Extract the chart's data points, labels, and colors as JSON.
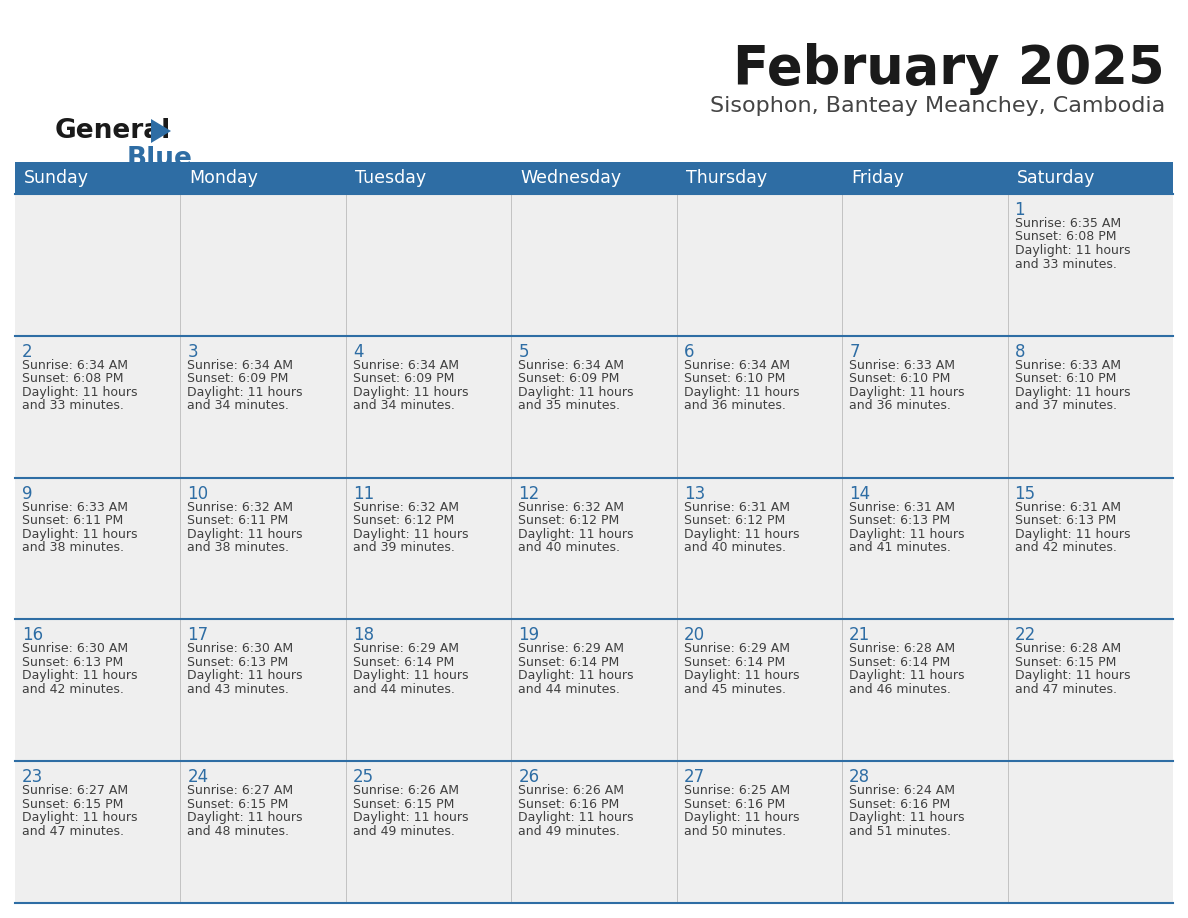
{
  "title": "February 2025",
  "subtitle": "Sisophon, Banteay Meanchey, Cambodia",
  "days_of_week": [
    "Sunday",
    "Monday",
    "Tuesday",
    "Wednesday",
    "Thursday",
    "Friday",
    "Saturday"
  ],
  "header_bg": "#2E6DA4",
  "header_text": "#FFFFFF",
  "cell_bg_light": "#EFEFEF",
  "day_number_color": "#2E6DA4",
  "text_color": "#404040",
  "line_color": "#2E6DA4",
  "grid_color": "#BBBBBB",
  "calendar_data": [
    [
      null,
      null,
      null,
      null,
      null,
      null,
      {
        "day": 1,
        "sunrise": "6:35 AM",
        "sunset": "6:08 PM",
        "daylight": "11 hours and 33 minutes."
      }
    ],
    [
      {
        "day": 2,
        "sunrise": "6:34 AM",
        "sunset": "6:08 PM",
        "daylight": "11 hours and 33 minutes."
      },
      {
        "day": 3,
        "sunrise": "6:34 AM",
        "sunset": "6:09 PM",
        "daylight": "11 hours and 34 minutes."
      },
      {
        "day": 4,
        "sunrise": "6:34 AM",
        "sunset": "6:09 PM",
        "daylight": "11 hours and 34 minutes."
      },
      {
        "day": 5,
        "sunrise": "6:34 AM",
        "sunset": "6:09 PM",
        "daylight": "11 hours and 35 minutes."
      },
      {
        "day": 6,
        "sunrise": "6:34 AM",
        "sunset": "6:10 PM",
        "daylight": "11 hours and 36 minutes."
      },
      {
        "day": 7,
        "sunrise": "6:33 AM",
        "sunset": "6:10 PM",
        "daylight": "11 hours and 36 minutes."
      },
      {
        "day": 8,
        "sunrise": "6:33 AM",
        "sunset": "6:10 PM",
        "daylight": "11 hours and 37 minutes."
      }
    ],
    [
      {
        "day": 9,
        "sunrise": "6:33 AM",
        "sunset": "6:11 PM",
        "daylight": "11 hours and 38 minutes."
      },
      {
        "day": 10,
        "sunrise": "6:32 AM",
        "sunset": "6:11 PM",
        "daylight": "11 hours and 38 minutes."
      },
      {
        "day": 11,
        "sunrise": "6:32 AM",
        "sunset": "6:12 PM",
        "daylight": "11 hours and 39 minutes."
      },
      {
        "day": 12,
        "sunrise": "6:32 AM",
        "sunset": "6:12 PM",
        "daylight": "11 hours and 40 minutes."
      },
      {
        "day": 13,
        "sunrise": "6:31 AM",
        "sunset": "6:12 PM",
        "daylight": "11 hours and 40 minutes."
      },
      {
        "day": 14,
        "sunrise": "6:31 AM",
        "sunset": "6:13 PM",
        "daylight": "11 hours and 41 minutes."
      },
      {
        "day": 15,
        "sunrise": "6:31 AM",
        "sunset": "6:13 PM",
        "daylight": "11 hours and 42 minutes."
      }
    ],
    [
      {
        "day": 16,
        "sunrise": "6:30 AM",
        "sunset": "6:13 PM",
        "daylight": "11 hours and 42 minutes."
      },
      {
        "day": 17,
        "sunrise": "6:30 AM",
        "sunset": "6:13 PM",
        "daylight": "11 hours and 43 minutes."
      },
      {
        "day": 18,
        "sunrise": "6:29 AM",
        "sunset": "6:14 PM",
        "daylight": "11 hours and 44 minutes."
      },
      {
        "day": 19,
        "sunrise": "6:29 AM",
        "sunset": "6:14 PM",
        "daylight": "11 hours and 44 minutes."
      },
      {
        "day": 20,
        "sunrise": "6:29 AM",
        "sunset": "6:14 PM",
        "daylight": "11 hours and 45 minutes."
      },
      {
        "day": 21,
        "sunrise": "6:28 AM",
        "sunset": "6:14 PM",
        "daylight": "11 hours and 46 minutes."
      },
      {
        "day": 22,
        "sunrise": "6:28 AM",
        "sunset": "6:15 PM",
        "daylight": "11 hours and 47 minutes."
      }
    ],
    [
      {
        "day": 23,
        "sunrise": "6:27 AM",
        "sunset": "6:15 PM",
        "daylight": "11 hours and 47 minutes."
      },
      {
        "day": 24,
        "sunrise": "6:27 AM",
        "sunset": "6:15 PM",
        "daylight": "11 hours and 48 minutes."
      },
      {
        "day": 25,
        "sunrise": "6:26 AM",
        "sunset": "6:15 PM",
        "daylight": "11 hours and 49 minutes."
      },
      {
        "day": 26,
        "sunrise": "6:26 AM",
        "sunset": "6:16 PM",
        "daylight": "11 hours and 49 minutes."
      },
      {
        "day": 27,
        "sunrise": "6:25 AM",
        "sunset": "6:16 PM",
        "daylight": "11 hours and 50 minutes."
      },
      {
        "day": 28,
        "sunrise": "6:24 AM",
        "sunset": "6:16 PM",
        "daylight": "11 hours and 51 minutes."
      },
      null
    ]
  ]
}
